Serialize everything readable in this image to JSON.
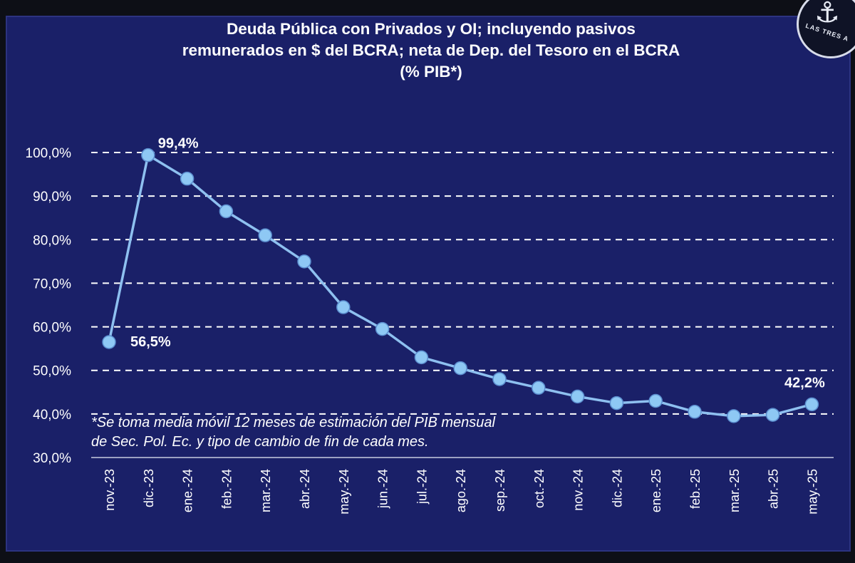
{
  "header": {
    "title_line1": "Deuda Pública con Privados y OI; incluyendo pasivos",
    "title_line2": "remunerados en $ del BCRA; neta de Dep. del Tesoro en el BCRA",
    "title_line3": "(% PIB*)"
  },
  "logo": {
    "text": "LAS TRES A",
    "icon": "anchor-icon"
  },
  "footnote": {
    "line1": "*Se toma media móvil 12 meses de estimación del PIB mensual",
    "line2": "de Sec. Pol. Ec. y tipo de cambio de fin de cada mes."
  },
  "colors": {
    "background": "#1a2068",
    "line": "#8ec0f0",
    "marker": "#8ec8f4",
    "grid": "#ffffff",
    "text": "#ffffff"
  },
  "chart_data": {
    "type": "line",
    "title": "Deuda Pública con Privados y OI; incluyendo pasivos remunerados en $ del BCRA; neta de Dep. del Tesoro en el BCRA (% PIB*)",
    "categories": [
      "nov.-23",
      "dic.-23",
      "ene.-24",
      "feb.-24",
      "mar.-24",
      "abr.-24",
      "may.-24",
      "jun.-24",
      "jul.-24",
      "ago.-24",
      "sep.-24",
      "oct.-24",
      "nov.-24",
      "dic.-24",
      "ene.-25",
      "feb.-25",
      "mar.-25",
      "abr.-25",
      "may.-25"
    ],
    "series": [
      {
        "values": [
          56.5,
          99.4,
          94.0,
          86.5,
          81.0,
          75.0,
          64.5,
          59.5,
          53.0,
          50.5,
          48.0,
          46.0,
          44.0,
          42.5,
          43.0,
          40.5,
          39.5,
          39.8,
          42.2
        ]
      }
    ],
    "data_labels": [
      {
        "index": 0,
        "text": "56,5%"
      },
      {
        "index": 1,
        "text": "99,4%"
      },
      {
        "index": 18,
        "text": "42,2%"
      }
    ],
    "yticks": [
      "30,0%",
      "40,0%",
      "50,0%",
      "60,0%",
      "70,0%",
      "80,0%",
      "90,0%",
      "100,0%"
    ],
    "ylim": [
      30,
      100
    ],
    "xlabel": "",
    "ylabel": "",
    "grid": "dashed horizontal",
    "legend": "none"
  }
}
